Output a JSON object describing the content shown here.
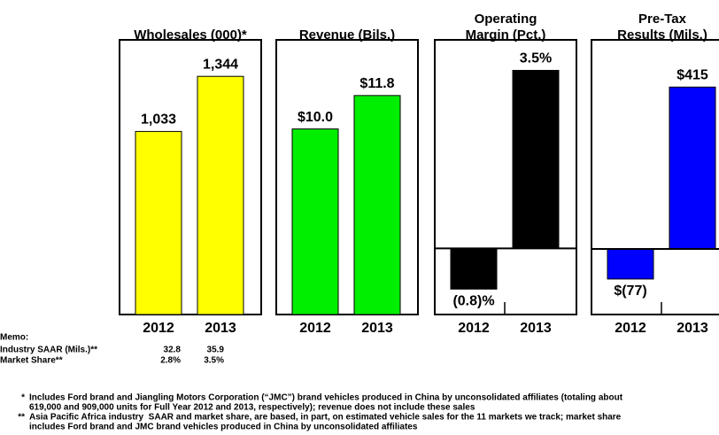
{
  "chart_data": [
    {
      "type": "bar",
      "title": [
        "Wholesales (000)*"
      ],
      "categories": [
        "2012",
        "2013"
      ],
      "values": [
        1033,
        1344
      ],
      "value_labels": [
        "1,033",
        "1,344"
      ],
      "color": "#ffff00",
      "ylim": [
        0,
        1550
      ]
    },
    {
      "type": "bar",
      "title": [
        "Revenue (Bils.)"
      ],
      "categories": [
        "2012",
        "2013"
      ],
      "values": [
        10.0,
        11.8
      ],
      "value_labels": [
        "$10.0",
        "$11.8"
      ],
      "color": "#00ee00",
      "ylim": [
        0,
        14.8
      ]
    },
    {
      "type": "bar",
      "title": [
        "Operating",
        "Margin (Pct.)"
      ],
      "categories": [
        "2012",
        "2013"
      ],
      "values": [
        -0.8,
        3.5
      ],
      "value_labels": [
        "(0.8)%",
        "3.5%"
      ],
      "color": "#000000",
      "ylim": [
        -1.3,
        4.1
      ]
    },
    {
      "type": "bar",
      "title": [
        "Pre-Tax",
        "Results (Mils.)"
      ],
      "categories": [
        "2012",
        "2013"
      ],
      "values": [
        -77,
        415
      ],
      "value_labels": [
        "$(77)",
        "$415"
      ],
      "color": "#0000ff",
      "ylim": [
        -168,
        536
      ]
    }
  ],
  "memo": {
    "label": "Memo:",
    "rows": [
      {
        "label": "Industry SAAR (Mils.)**",
        "values": [
          "32.8",
          "35.9"
        ]
      },
      {
        "label": "Market Share**",
        "values": [
          "2.8%",
          "3.5%"
        ]
      }
    ]
  },
  "footnotes": [
    {
      "marker": "*",
      "lines": [
        "Includes Ford brand and Jiangling Motors Corporation (“JMC”) brand vehicles produced in China by unconsolidated affiliates (totaling about",
        "619,000 and 909,000 units for Full Year 2012 and 2013, respectively); revenue does not include these sales"
      ]
    },
    {
      "marker": "**",
      "lines": [
        "Asia Pacific Africa industry  SAAR and market share, are based, in part, on estimated vehicle sales for the 11 markets we track; market share",
        "includes Ford brand and JMC brand vehicles produced in China by unconsolidated affiliates"
      ]
    }
  ]
}
